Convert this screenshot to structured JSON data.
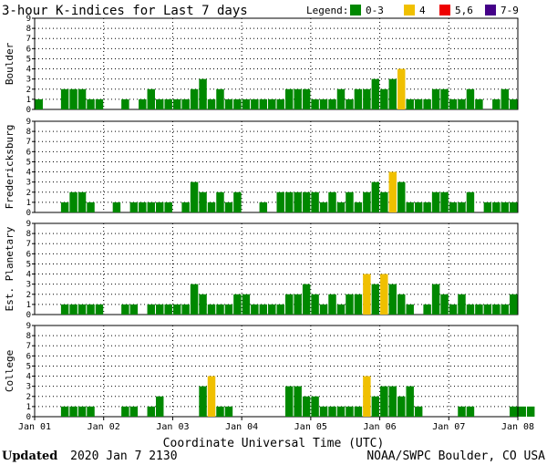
{
  "chart_data": {
    "type": "bar",
    "title": "3-hour K-indices for Last 7 days",
    "legend": {
      "label": "Legend:",
      "placement": "top-right",
      "entries": [
        {
          "label": "0-3",
          "color": "#008800"
        },
        {
          "label": "4",
          "color": "#f0c000"
        },
        {
          "label": "5,6",
          "color": "#ee0000"
        },
        {
          "label": "7-9",
          "color": "#440088"
        }
      ]
    },
    "xlabel": "Coordinate Universal Time (UTC)",
    "x_ticks": [
      "Jan 01",
      "Jan 02",
      "Jan 03",
      "Jan 04",
      "Jan 05",
      "Jan 06",
      "Jan 07",
      "Jan 08"
    ],
    "y_ticks": [
      "0",
      "1",
      "2",
      "3",
      "4",
      "5",
      "6",
      "7",
      "8",
      "9"
    ],
    "ylim": [
      0,
      9
    ],
    "interval_hours": 3,
    "grid": true,
    "series": [
      {
        "name": "Boulder",
        "values": [
          1,
          0,
          0,
          2,
          2,
          2,
          1,
          1,
          0,
          0,
          1,
          0,
          1,
          2,
          1,
          1,
          1,
          1,
          2,
          3,
          1,
          2,
          1,
          1,
          1,
          1,
          1,
          1,
          1,
          2,
          2,
          2,
          1,
          1,
          1,
          2,
          1,
          2,
          2,
          3,
          2,
          3,
          4,
          1,
          1,
          1,
          2,
          2,
          1,
          1,
          2,
          1,
          0,
          1,
          2,
          1,
          0
        ]
      },
      {
        "name": "Fredericksburg",
        "values": [
          0,
          0,
          0,
          1,
          2,
          2,
          1,
          0,
          0,
          1,
          0,
          1,
          1,
          1,
          1,
          1,
          0,
          1,
          3,
          2,
          1,
          2,
          1,
          2,
          0,
          0,
          1,
          0,
          2,
          2,
          2,
          2,
          2,
          1,
          2,
          1,
          2,
          1,
          2,
          3,
          2,
          4,
          3,
          1,
          1,
          1,
          2,
          2,
          1,
          1,
          2,
          0,
          1,
          1,
          1,
          1,
          0
        ]
      },
      {
        "name": "Est. Planetary",
        "values": [
          0,
          0,
          0,
          1,
          1,
          1,
          1,
          1,
          0,
          0,
          1,
          1,
          0,
          1,
          1,
          1,
          1,
          1,
          3,
          2,
          1,
          1,
          1,
          2,
          2,
          1,
          1,
          1,
          1,
          2,
          2,
          3,
          2,
          1,
          2,
          1,
          2,
          2,
          4,
          3,
          4,
          3,
          2,
          1,
          0,
          1,
          3,
          2,
          1,
          2,
          1,
          1,
          1,
          1,
          1,
          2,
          0
        ]
      },
      {
        "name": "College",
        "values": [
          0,
          0,
          0,
          1,
          1,
          1,
          1,
          0,
          0,
          0,
          1,
          1,
          0,
          1,
          2,
          0,
          0,
          0,
          0,
          3,
          4,
          1,
          1,
          0,
          0,
          0,
          0,
          0,
          0,
          3,
          3,
          2,
          2,
          1,
          1,
          1,
          1,
          1,
          4,
          2,
          3,
          3,
          2,
          3,
          1,
          0,
          0,
          0,
          0,
          1,
          1,
          0,
          0,
          0,
          0,
          1,
          1,
          1,
          0
        ]
      }
    ]
  },
  "footer": {
    "updated_label": "Updated",
    "updated_value": "2020 Jan  7 2130",
    "credit": "NOAA/SWPC Boulder, CO USA"
  }
}
